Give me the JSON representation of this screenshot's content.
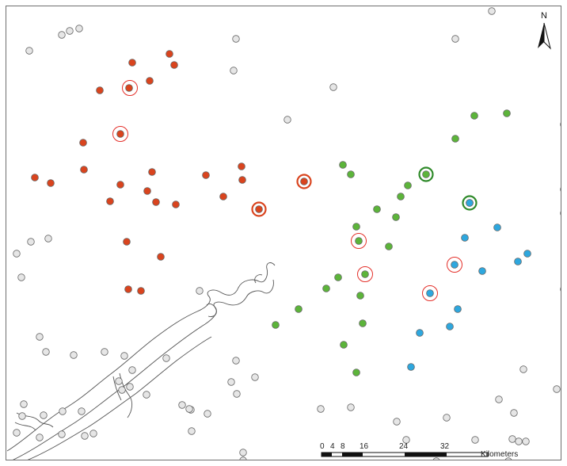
{
  "map": {
    "north_label": "N",
    "north_icon": "north-arrow-icon",
    "colors": {
      "group_red": "#d9441e",
      "group_green": "#5cb43a",
      "group_blue": "#2ea7de",
      "neutral_fill": "#e6e6e6",
      "point_stroke": "#666666",
      "highlight_ring": "#e4302a",
      "river_line": "#555555",
      "frame": "#6f6f6f"
    },
    "scale_bar": {
      "ticks": [
        "0",
        "4",
        "8",
        "16",
        "24",
        "32"
      ],
      "unit_label": "Kilometers"
    }
  }
}
